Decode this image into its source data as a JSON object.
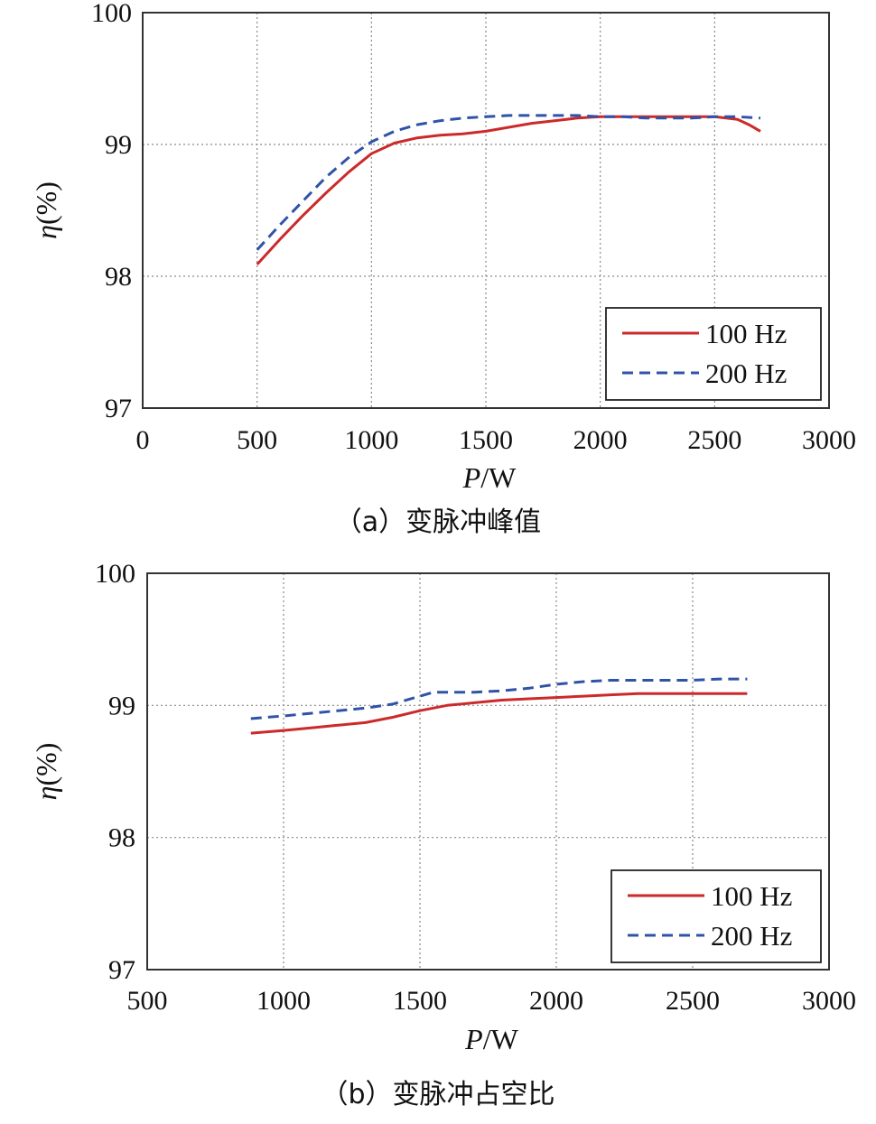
{
  "chart_data": [
    {
      "type": "line",
      "caption": "（a）变脉冲峰值",
      "xlabel_var": "P",
      "xlabel_unit": "/W",
      "ylabel_var": "η",
      "ylabel_unit": "(%)",
      "xlim": [
        0,
        3000
      ],
      "ylim": [
        97,
        100
      ],
      "xticks": [
        "0",
        "500",
        "1000",
        "1500",
        "2000",
        "2500",
        "3000"
      ],
      "yticks": [
        "97",
        "98",
        "99",
        "100"
      ],
      "grid": true,
      "legend_position": "bottom-right",
      "series": [
        {
          "name": "100 Hz",
          "color": "#cc2a2a",
          "dash": "solid",
          "x": [
            500,
            600,
            700,
            800,
            900,
            1000,
            1100,
            1200,
            1300,
            1400,
            1500,
            1600,
            1700,
            1800,
            1900,
            2000,
            2100,
            2200,
            2300,
            2400,
            2500,
            2600,
            2650,
            2700
          ],
          "y": [
            98.09,
            98.28,
            98.46,
            98.63,
            98.79,
            98.93,
            99.01,
            99.05,
            99.07,
            99.08,
            99.1,
            99.13,
            99.16,
            99.18,
            99.2,
            99.21,
            99.21,
            99.21,
            99.21,
            99.21,
            99.21,
            99.19,
            99.15,
            99.1
          ]
        },
        {
          "name": "200 Hz",
          "color": "#2f53a8",
          "dash": "dashed",
          "x": [
            500,
            600,
            700,
            800,
            900,
            1000,
            1100,
            1200,
            1300,
            1400,
            1500,
            1600,
            1700,
            1800,
            1900,
            2000,
            2100,
            2200,
            2300,
            2400,
            2500,
            2600,
            2700
          ],
          "y": [
            98.2,
            98.39,
            98.57,
            98.75,
            98.9,
            99.02,
            99.1,
            99.15,
            99.18,
            99.2,
            99.21,
            99.22,
            99.22,
            99.22,
            99.22,
            99.21,
            99.21,
            99.2,
            99.2,
            99.2,
            99.21,
            99.21,
            99.2
          ]
        }
      ]
    },
    {
      "type": "line",
      "caption": "（b）变脉冲占空比",
      "xlabel_var": "P",
      "xlabel_unit": "/W",
      "ylabel_var": "η",
      "ylabel_unit": "(%)",
      "xlim": [
        500,
        3000
      ],
      "ylim": [
        97,
        100
      ],
      "xticks": [
        "500",
        "1000",
        "1500",
        "2000",
        "2500",
        "3000"
      ],
      "yticks": [
        "97",
        "98",
        "99",
        "100"
      ],
      "grid": true,
      "legend_position": "bottom-right",
      "series": [
        {
          "name": "100 Hz",
          "color": "#cc2a2a",
          "dash": "solid",
          "x": [
            880,
            1000,
            1100,
            1200,
            1300,
            1400,
            1500,
            1600,
            1700,
            1800,
            1900,
            2000,
            2100,
            2200,
            2300,
            2400,
            2500,
            2600,
            2700
          ],
          "y": [
            98.79,
            98.81,
            98.83,
            98.85,
            98.87,
            98.91,
            98.96,
            99.0,
            99.02,
            99.04,
            99.05,
            99.06,
            99.07,
            99.08,
            99.09,
            99.09,
            99.09,
            99.09,
            99.09
          ]
        },
        {
          "name": "200 Hz",
          "color": "#2f53a8",
          "dash": "dashed",
          "x": [
            880,
            1000,
            1100,
            1200,
            1300,
            1400,
            1500,
            1550,
            1600,
            1700,
            1800,
            1900,
            2000,
            2100,
            2200,
            2300,
            2400,
            2500,
            2600,
            2700
          ],
          "y": [
            98.9,
            98.92,
            98.94,
            98.96,
            98.98,
            99.01,
            99.07,
            99.1,
            99.1,
            99.1,
            99.11,
            99.13,
            99.16,
            99.18,
            99.19,
            99.19,
            99.19,
            99.19,
            99.2,
            99.2
          ]
        }
      ]
    }
  ]
}
